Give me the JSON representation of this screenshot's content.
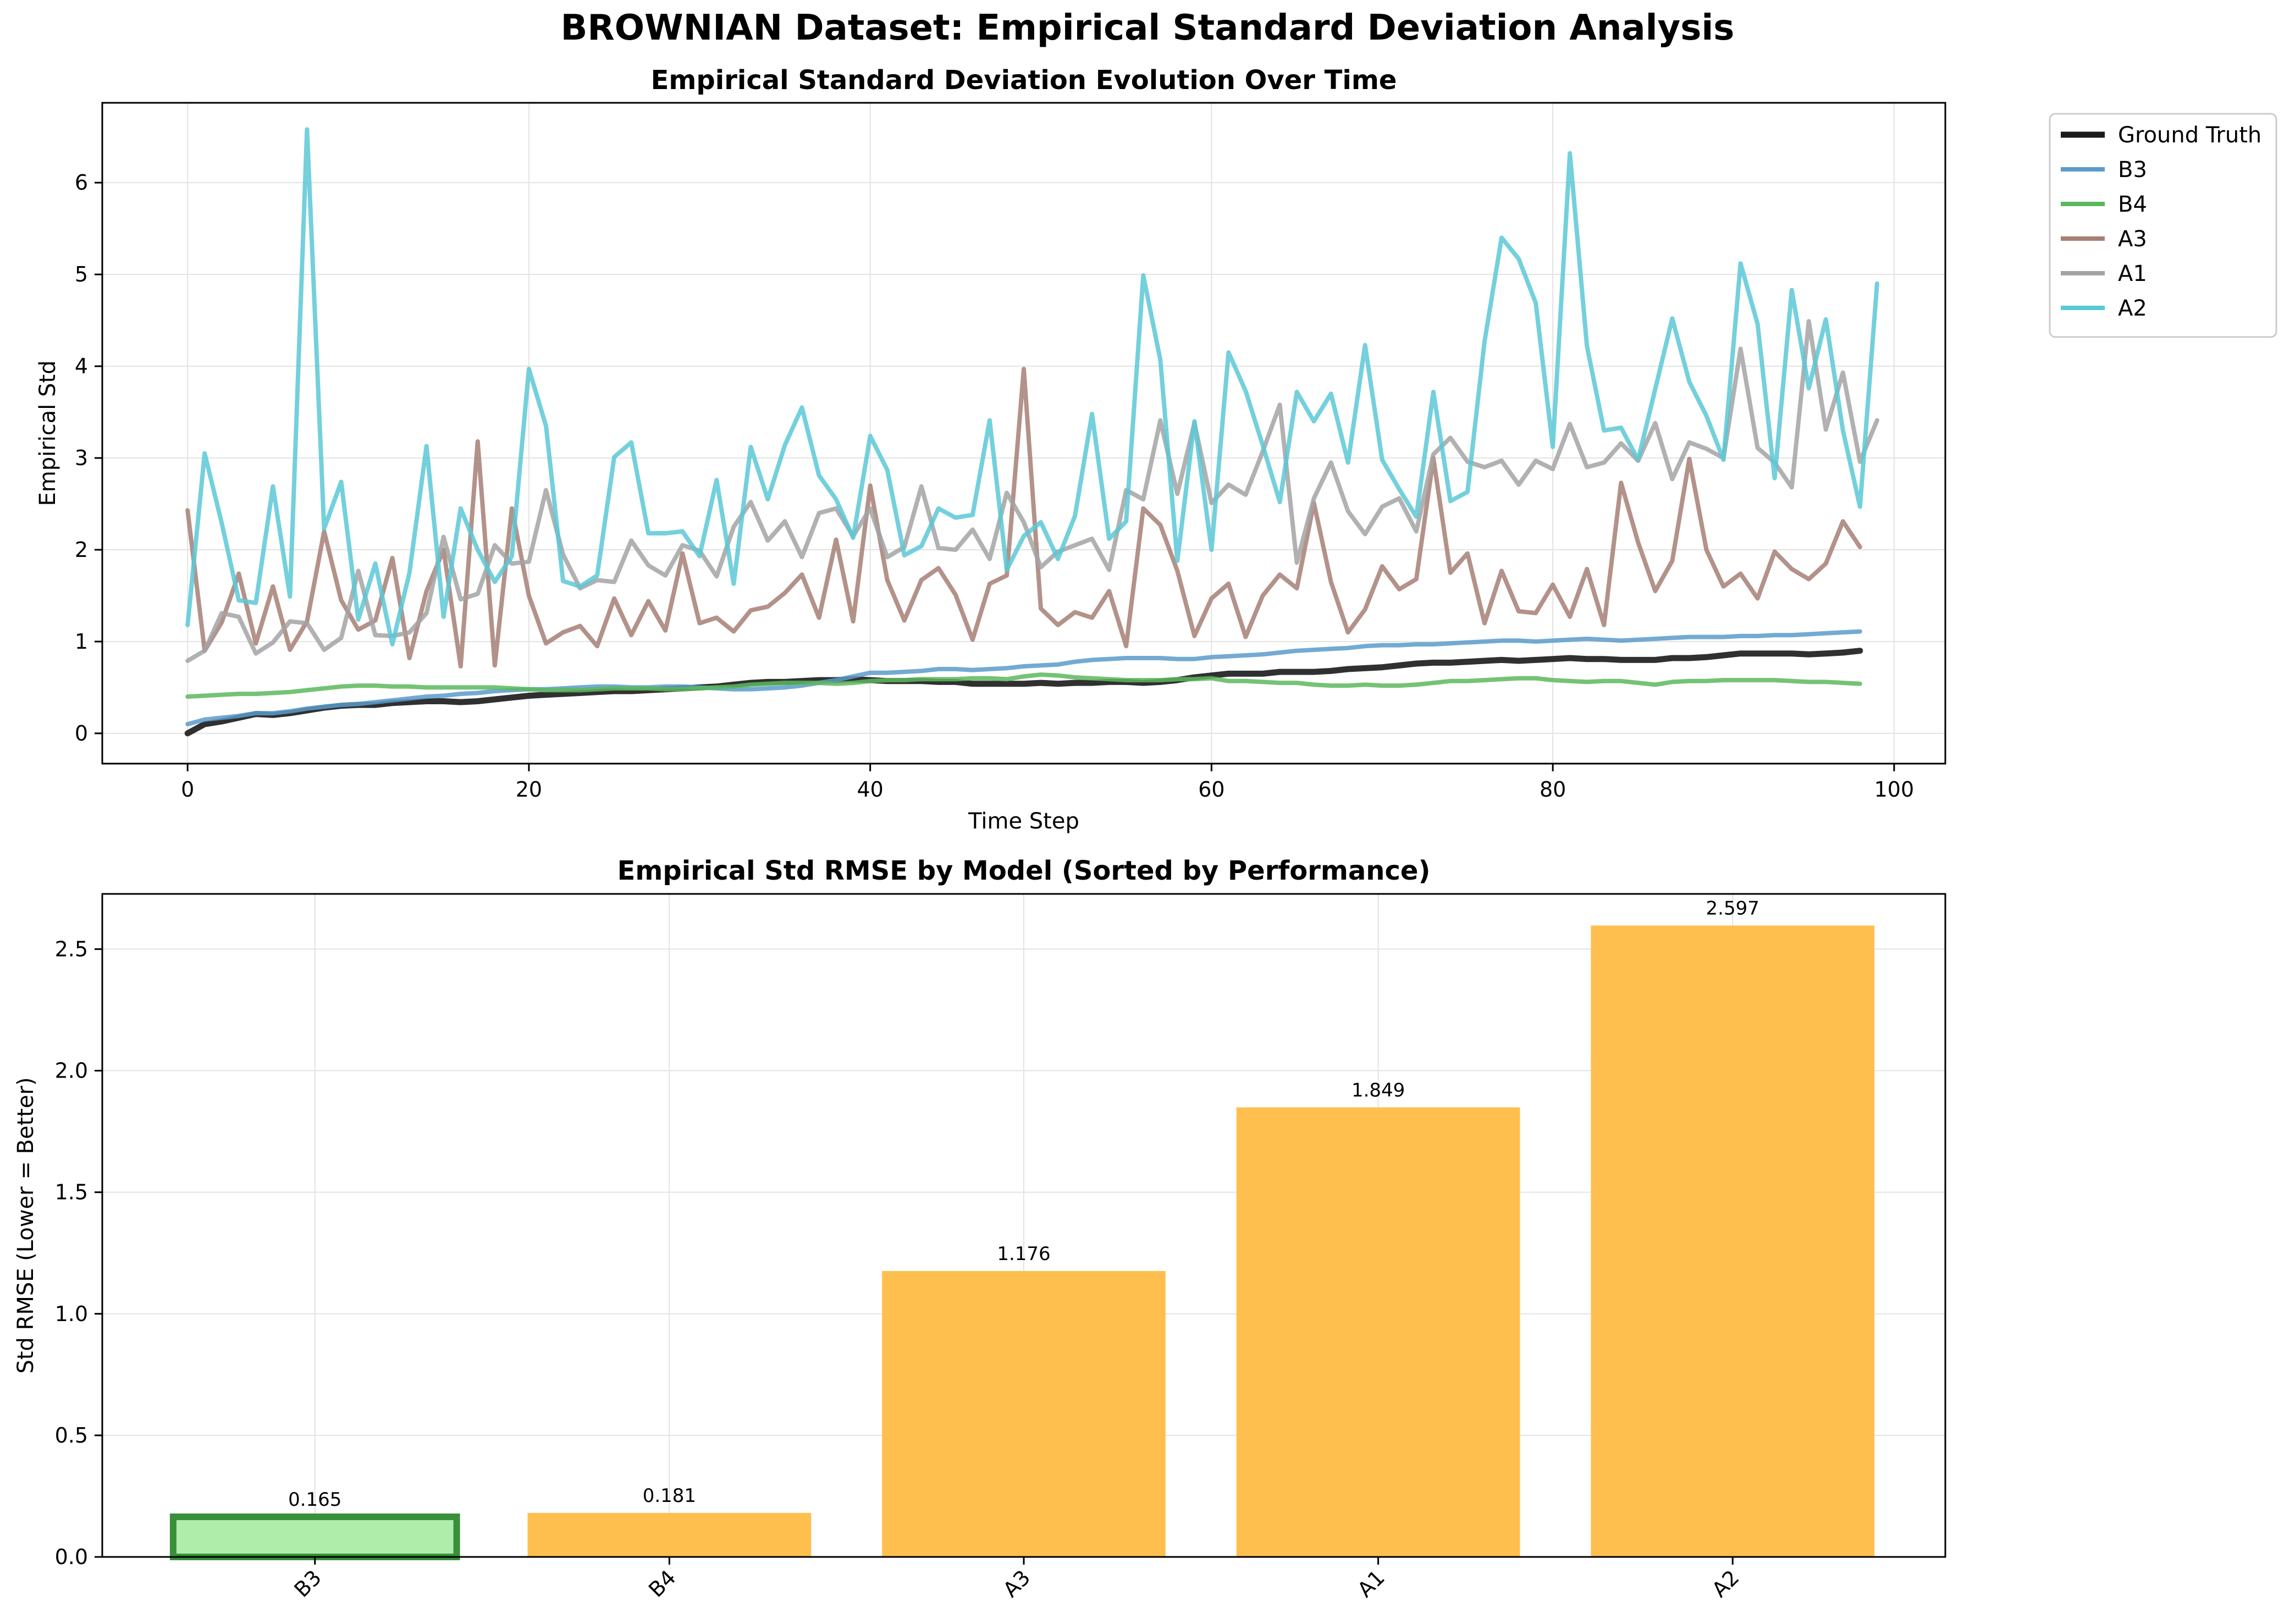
{
  "suptitle": "BROWNIAN Dataset: Empirical Standard Deviation Analysis",
  "chart_data": [
    {
      "type": "line",
      "title": "Empirical Standard Deviation Evolution Over Time",
      "xlabel": "Time Step",
      "ylabel": "Empirical Std",
      "xlim": [
        -5,
        103
      ],
      "ylim": [
        -0.33,
        6.87
      ],
      "xticks": [
        0,
        20,
        40,
        60,
        80,
        100
      ],
      "yticks": [
        0,
        1,
        2,
        3,
        4,
        5,
        6
      ],
      "grid": true,
      "legend": "outside-top-right",
      "series": [
        {
          "name": "Ground Truth",
          "color": "#1a1a1a",
          "width": 11,
          "values": [
            0.0,
            0.1,
            0.13,
            0.17,
            0.21,
            0.2,
            0.22,
            0.25,
            0.28,
            0.3,
            0.31,
            0.31,
            0.33,
            0.34,
            0.35,
            0.35,
            0.34,
            0.35,
            0.37,
            0.39,
            0.41,
            0.42,
            0.43,
            0.44,
            0.45,
            0.46,
            0.46,
            0.47,
            0.48,
            0.49,
            0.5,
            0.51,
            0.53,
            0.55,
            0.56,
            0.56,
            0.57,
            0.58,
            0.58,
            0.59,
            0.58,
            0.57,
            0.57,
            0.57,
            0.56,
            0.56,
            0.54,
            0.54,
            0.54,
            0.54,
            0.55,
            0.54,
            0.55,
            0.55,
            0.56,
            0.56,
            0.55,
            0.56,
            0.58,
            0.61,
            0.63,
            0.65,
            0.65,
            0.65,
            0.67,
            0.67,
            0.67,
            0.68,
            0.7,
            0.71,
            0.72,
            0.74,
            0.76,
            0.77,
            0.77,
            0.78,
            0.79,
            0.8,
            0.79,
            0.8,
            0.81,
            0.82,
            0.81,
            0.81,
            0.8,
            0.8,
            0.8,
            0.82,
            0.82,
            0.83,
            0.85,
            0.87,
            0.87,
            0.87,
            0.87,
            0.86,
            0.87,
            0.88,
            0.9
          ]
        },
        {
          "name": "B3",
          "color": "#5b9bcb",
          "width": 8,
          "values": [
            0.1,
            0.15,
            0.17,
            0.19,
            0.22,
            0.22,
            0.24,
            0.27,
            0.29,
            0.31,
            0.32,
            0.34,
            0.36,
            0.38,
            0.4,
            0.41,
            0.43,
            0.44,
            0.46,
            0.47,
            0.48,
            0.48,
            0.49,
            0.5,
            0.51,
            0.51,
            0.5,
            0.5,
            0.51,
            0.51,
            0.5,
            0.49,
            0.48,
            0.48,
            0.49,
            0.5,
            0.52,
            0.55,
            0.58,
            0.62,
            0.66,
            0.66,
            0.67,
            0.68,
            0.7,
            0.7,
            0.69,
            0.7,
            0.71,
            0.73,
            0.74,
            0.75,
            0.78,
            0.8,
            0.81,
            0.82,
            0.82,
            0.82,
            0.81,
            0.81,
            0.83,
            0.84,
            0.85,
            0.86,
            0.88,
            0.9,
            0.91,
            0.92,
            0.93,
            0.95,
            0.96,
            0.96,
            0.97,
            0.97,
            0.98,
            0.99,
            1.0,
            1.01,
            1.01,
            1.0,
            1.01,
            1.02,
            1.03,
            1.02,
            1.01,
            1.02,
            1.03,
            1.04,
            1.05,
            1.05,
            1.05,
            1.06,
            1.06,
            1.07,
            1.07,
            1.08,
            1.09,
            1.1,
            1.11
          ]
        },
        {
          "name": "B4",
          "color": "#5cb85c",
          "width": 8,
          "values": [
            0.4,
            0.41,
            0.42,
            0.43,
            0.43,
            0.44,
            0.45,
            0.47,
            0.49,
            0.51,
            0.52,
            0.52,
            0.51,
            0.51,
            0.5,
            0.5,
            0.5,
            0.5,
            0.5,
            0.49,
            0.48,
            0.47,
            0.47,
            0.47,
            0.48,
            0.49,
            0.49,
            0.49,
            0.48,
            0.48,
            0.49,
            0.5,
            0.51,
            0.53,
            0.54,
            0.55,
            0.55,
            0.55,
            0.54,
            0.55,
            0.57,
            0.58,
            0.58,
            0.59,
            0.59,
            0.59,
            0.6,
            0.6,
            0.59,
            0.62,
            0.64,
            0.63,
            0.61,
            0.6,
            0.59,
            0.58,
            0.58,
            0.58,
            0.59,
            0.59,
            0.6,
            0.57,
            0.57,
            0.56,
            0.55,
            0.55,
            0.53,
            0.52,
            0.52,
            0.53,
            0.52,
            0.52,
            0.53,
            0.55,
            0.57,
            0.57,
            0.58,
            0.59,
            0.6,
            0.6,
            0.58,
            0.57,
            0.56,
            0.57,
            0.57,
            0.55,
            0.53,
            0.56,
            0.57,
            0.57,
            0.58,
            0.58,
            0.58,
            0.58,
            0.57,
            0.56,
            0.56,
            0.55,
            0.54
          ]
        },
        {
          "name": "A3",
          "color": "#a67f76",
          "width": 8,
          "values": [
            2.43,
            0.9,
            1.21,
            1.74,
            0.98,
            1.6,
            0.91,
            1.22,
            2.2,
            1.45,
            1.13,
            1.23,
            1.91,
            0.82,
            1.55,
            2.0,
            0.73,
            3.18,
            0.74,
            2.45,
            1.5,
            0.98,
            1.1,
            1.17,
            0.95,
            1.47,
            1.07,
            1.44,
            1.12,
            1.96,
            1.2,
            1.26,
            1.11,
            1.34,
            1.38,
            1.53,
            1.73,
            1.26,
            2.11,
            1.22,
            2.7,
            1.67,
            1.23,
            1.67,
            1.8,
            1.51,
            1.02,
            1.63,
            1.72,
            3.97,
            1.36,
            1.18,
            1.32,
            1.26,
            1.55,
            0.95,
            2.45,
            2.27,
            1.77,
            1.06,
            1.47,
            1.63,
            1.05,
            1.5,
            1.73,
            1.58,
            2.51,
            1.65,
            1.1,
            1.35,
            1.82,
            1.57,
            1.68,
            3.0,
            1.75,
            1.96,
            1.2,
            1.77,
            1.33,
            1.31,
            1.62,
            1.27,
            1.79,
            1.18,
            2.73,
            2.08,
            1.55,
            1.88,
            2.99,
            2.0,
            1.6,
            1.74,
            1.47,
            1.98,
            1.79,
            1.68,
            1.85,
            2.31,
            2.03
          ]
        },
        {
          "name": "A1",
          "color": "#a3a3a3",
          "width": 8,
          "values": [
            0.79,
            0.9,
            1.31,
            1.27,
            0.87,
            0.99,
            1.22,
            1.2,
            0.91,
            1.04,
            1.77,
            1.07,
            1.06,
            1.1,
            1.31,
            2.14,
            1.46,
            1.52,
            2.05,
            1.85,
            1.87,
            2.65,
            1.95,
            1.58,
            1.67,
            1.65,
            2.1,
            1.83,
            1.72,
            2.05,
            1.99,
            1.71,
            2.25,
            2.52,
            2.1,
            2.31,
            1.92,
            2.4,
            2.45,
            2.15,
            2.45,
            1.92,
            2.03,
            2.69,
            2.02,
            2.0,
            2.22,
            1.9,
            2.62,
            2.3,
            1.81,
            1.98,
            2.05,
            2.12,
            1.78,
            2.65,
            2.55,
            3.41,
            2.61,
            3.38,
            2.51,
            2.71,
            2.6,
            3.07,
            3.58,
            1.86,
            2.56,
            2.95,
            2.42,
            2.17,
            2.47,
            2.56,
            2.2,
            3.04,
            3.22,
            2.96,
            2.9,
            2.97,
            2.71,
            2.97,
            2.88,
            3.37,
            2.9,
            2.95,
            3.16,
            2.97,
            3.38,
            2.77,
            3.17,
            3.1,
            3.0,
            4.19,
            3.11,
            2.95,
            2.68,
            4.49,
            3.31,
            3.93,
            2.96,
            3.41
          ]
        },
        {
          "name": "A2",
          "color": "#5bc8d6",
          "width": 8,
          "values": [
            1.18,
            3.05,
            2.29,
            1.45,
            1.42,
            2.69,
            1.49,
            6.58,
            2.23,
            2.74,
            1.24,
            1.85,
            0.97,
            1.75,
            3.13,
            1.27,
            2.45,
            2.0,
            1.65,
            1.93,
            3.97,
            3.35,
            1.66,
            1.6,
            1.72,
            3.01,
            3.17,
            2.18,
            2.18,
            2.2,
            1.93,
            2.76,
            1.63,
            3.12,
            2.55,
            3.14,
            3.55,
            2.81,
            2.55,
            2.13,
            3.24,
            2.87,
            1.94,
            2.04,
            2.45,
            2.35,
            2.38,
            3.41,
            1.78,
            2.15,
            2.3,
            1.9,
            2.37,
            3.48,
            2.12,
            2.31,
            4.99,
            4.07,
            1.88,
            3.4,
            2.0,
            4.15,
            3.73,
            3.14,
            2.52,
            3.72,
            3.4,
            3.7,
            2.95,
            4.23,
            2.98,
            2.66,
            2.36,
            3.72,
            2.53,
            2.63,
            4.27,
            5.4,
            5.17,
            4.69,
            3.12,
            6.32,
            4.22,
            3.3,
            3.33,
            2.98,
            3.75,
            4.52,
            3.83,
            3.46,
            2.98,
            5.12,
            4.46,
            2.78,
            4.83,
            3.76,
            4.51,
            3.3,
            2.47,
            4.9
          ]
        }
      ]
    },
    {
      "type": "bar",
      "title": "Empirical Std RMSE by Model (Sorted by Performance)",
      "xlabel": "",
      "ylabel": "Std RMSE (Lower = Better)",
      "categories": [
        "B3",
        "B4",
        "A3",
        "A1",
        "A2"
      ],
      "values": [
        0.165,
        0.181,
        1.176,
        1.849,
        2.597
      ],
      "labels": [
        "0.165",
        "0.181",
        "1.176",
        "1.849",
        "2.597"
      ],
      "best": "B3",
      "ylim": [
        0,
        2.727
      ],
      "yticks": [
        0.0,
        0.5,
        1.0,
        1.5,
        2.0,
        2.5
      ],
      "ytick_labels": [
        "0.0",
        "0.5",
        "1.0",
        "1.5",
        "2.0",
        "2.5"
      ],
      "grid": true,
      "colors": {
        "best_fill": "#aeeeaa",
        "best_edge": "#3a8f3a",
        "other_fill": "#ffbf4f"
      }
    }
  ]
}
